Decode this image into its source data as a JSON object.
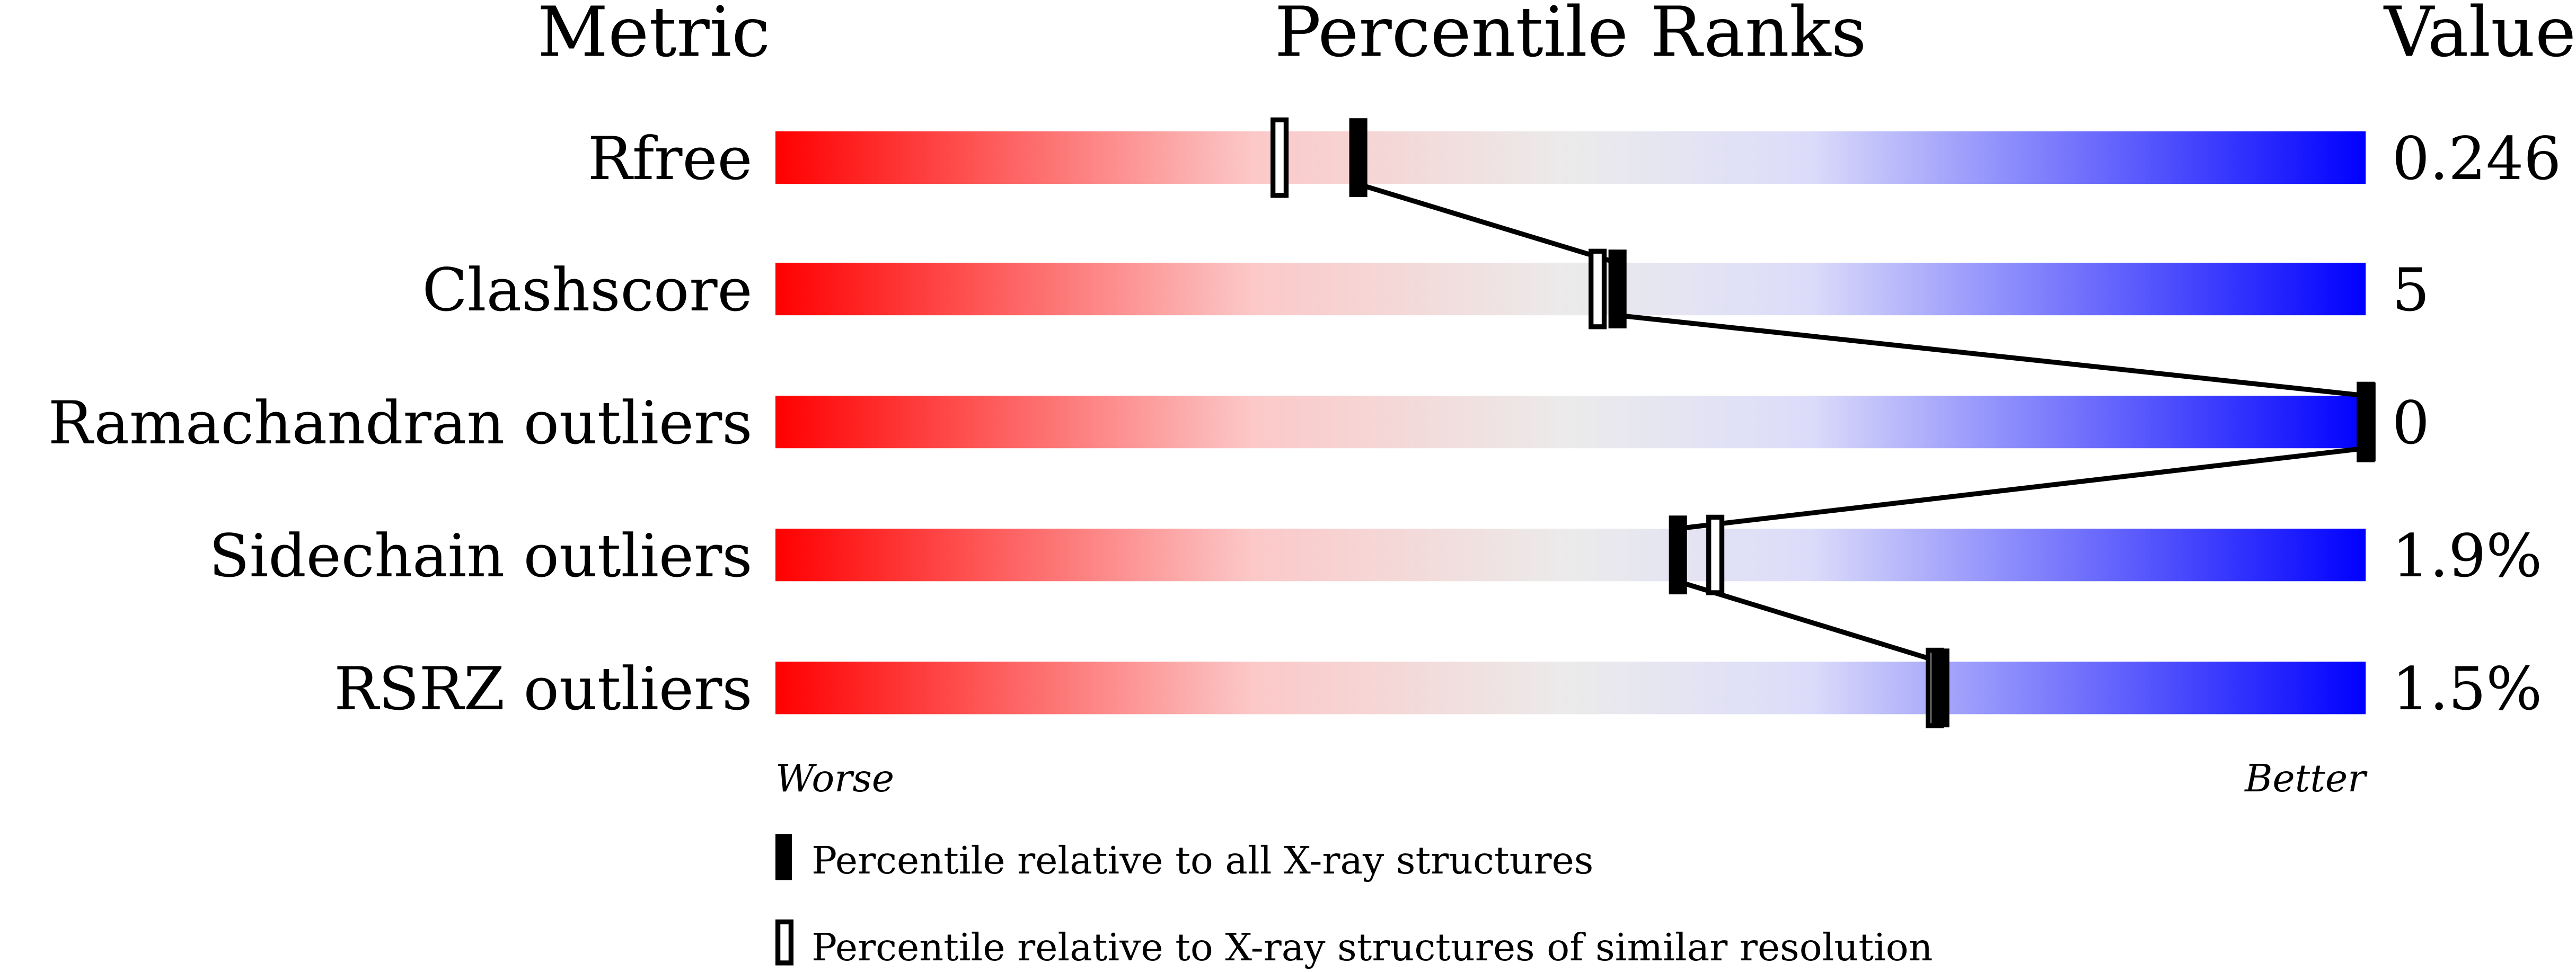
{
  "chart_data": {
    "type": "percentile-slider",
    "headers": {
      "metric": "Metric",
      "ranks": "Percentile Ranks",
      "value": "Value"
    },
    "axis": {
      "left_label": "Worse",
      "right_label": "Better",
      "range": [
        0,
        100
      ]
    },
    "gradient_colors": [
      "#ff0000",
      "#fcc8c8",
      "#ebebeb",
      "#dcdcfa",
      "#0000ff"
    ],
    "metrics": [
      {
        "name": "Rfree",
        "value": "0.246",
        "percentile_all": 36.6,
        "percentile_similar": 31.7
      },
      {
        "name": "Clashscore",
        "value": "5",
        "percentile_all": 52.9,
        "percentile_similar": 51.7
      },
      {
        "name": "Ramachandran outliers",
        "value": "0",
        "percentile_all": 100,
        "percentile_similar": 100
      },
      {
        "name": "Sidechain outliers",
        "value": "1.9%",
        "percentile_all": 56.7,
        "percentile_similar": 59.1
      },
      {
        "name": "RSRZ outliers",
        "value": "1.5%",
        "percentile_all": 73.2,
        "percentile_similar": 72.9
      }
    ],
    "legend": [
      {
        "marker": "filled",
        "label": "Percentile relative to all X-ray structures"
      },
      {
        "marker": "open",
        "label": "Percentile relative to X-ray structures of similar resolution"
      }
    ]
  }
}
